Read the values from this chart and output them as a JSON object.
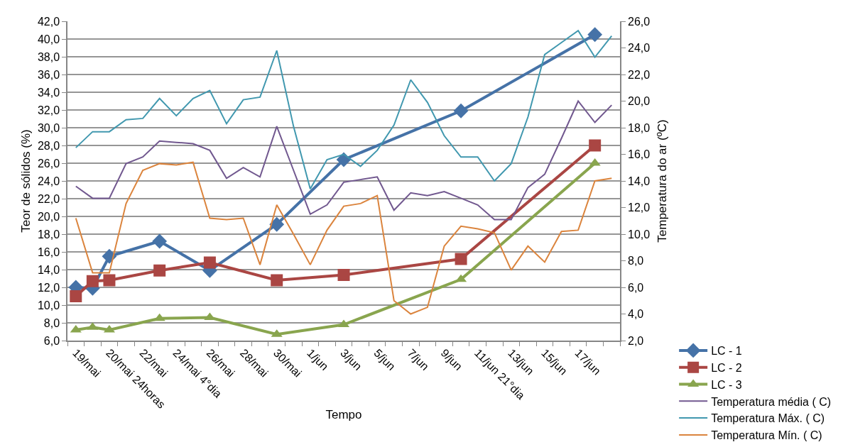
{
  "chart_data": {
    "type": "line",
    "categories": [
      "19/mai",
      null,
      "20/mai 24horas",
      null,
      "22/mai",
      null,
      "24/mai 4°dia",
      null,
      "26/mai",
      null,
      "28/mai",
      null,
      "30/mai",
      null,
      "1/jun",
      null,
      "3/jun",
      null,
      "5/jun",
      null,
      "7/jun",
      null,
      "9/jun",
      null,
      "11/jun 21°dia",
      null,
      "13/jun",
      null,
      "15/jun",
      null,
      "17/jun",
      null,
      null
    ],
    "xlabel": "Tempo",
    "ylabel": "Teor de sólidos (%)",
    "y2label": "Temperatura do ar (ºC)",
    "ylim": [
      6,
      42
    ],
    "yticks": [
      {
        "value": 6,
        "label": "6,0"
      },
      {
        "value": 8,
        "label": "8,0"
      },
      {
        "value": 10,
        "label": "10,0"
      },
      {
        "value": 12,
        "label": "12,0"
      },
      {
        "value": 14,
        "label": "14,0"
      },
      {
        "value": 16,
        "label": "16,0"
      },
      {
        "value": 18,
        "label": "18,0"
      },
      {
        "value": 20,
        "label": "20,0"
      },
      {
        "value": 22,
        "label": "22,0"
      },
      {
        "value": 24,
        "label": "24,0"
      },
      {
        "value": 26,
        "label": "26,0"
      },
      {
        "value": 28,
        "label": "28,0"
      },
      {
        "value": 30,
        "label": "30,0"
      },
      {
        "value": 32,
        "label": "32,0"
      },
      {
        "value": 34,
        "label": "34,0"
      },
      {
        "value": 36,
        "label": "36,0"
      },
      {
        "value": 38,
        "label": "38,0"
      },
      {
        "value": 40,
        "label": "40,0"
      },
      {
        "value": 42,
        "label": "42,0"
      }
    ],
    "y2lim": [
      2,
      26
    ],
    "y2ticks": [
      {
        "value": 2,
        "label": "2,0"
      },
      {
        "value": 4,
        "label": "4,0"
      },
      {
        "value": 6,
        "label": "6,0"
      },
      {
        "value": 8,
        "label": "8,0"
      },
      {
        "value": 10,
        "label": "10,0"
      },
      {
        "value": 12,
        "label": "12,0"
      },
      {
        "value": 14,
        "label": "14,0"
      },
      {
        "value": 16,
        "label": "16,0"
      },
      {
        "value": 18,
        "label": "18,0"
      },
      {
        "value": 20,
        "label": "20,0"
      },
      {
        "value": 22,
        "label": "22,0"
      },
      {
        "value": 24,
        "label": "24,0"
      },
      {
        "value": 26,
        "label": "26,0"
      }
    ],
    "grid": "y",
    "legend": "bottom right",
    "line_style": "solid",
    "series": [
      {
        "name": "LC - 1",
        "color": "#4572a7",
        "marker": "diamond",
        "values": [
          12.0,
          11.9,
          15.5,
          null,
          null,
          17.2,
          null,
          null,
          13.9,
          null,
          null,
          null,
          19.1,
          null,
          null,
          null,
          26.4,
          null,
          null,
          null,
          null,
          null,
          null,
          31.9,
          null,
          null,
          null,
          null,
          null,
          null,
          null,
          40.5,
          null
        ]
      },
      {
        "name": "LC - 2",
        "color": "#aa4643",
        "marker": "square",
        "values": [
          11.0,
          12.7,
          12.8,
          null,
          null,
          13.9,
          null,
          null,
          14.8,
          null,
          null,
          null,
          12.8,
          null,
          null,
          null,
          13.4,
          null,
          null,
          null,
          null,
          null,
          null,
          15.2,
          null,
          null,
          null,
          null,
          null,
          null,
          null,
          28.0,
          null
        ]
      },
      {
        "name": "LC - 3",
        "color": "#89a54e",
        "marker": "triangle",
        "values": [
          7.2,
          7.5,
          7.2,
          null,
          null,
          8.5,
          null,
          null,
          8.6,
          null,
          null,
          null,
          6.7,
          null,
          null,
          null,
          7.8,
          null,
          null,
          null,
          null,
          null,
          null,
          12.9,
          null,
          null,
          null,
          null,
          null,
          null,
          null,
          26.0,
          null
        ]
      },
      {
        "name": "Temperatura média ( C)",
        "color": "#71588f",
        "marker": "none",
        "axis": "y2",
        "values": [
          13.6,
          12.7,
          12.7,
          15.3,
          15.8,
          17.0,
          16.9,
          16.8,
          16.3,
          14.2,
          15.0,
          14.3,
          18.1,
          14.8,
          11.5,
          12.2,
          13.9,
          14.1,
          14.3,
          11.8,
          13.1,
          12.9,
          13.2,
          12.7,
          12.2,
          11.1,
          11.1,
          13.5,
          14.5,
          17.2,
          20.0,
          18.4,
          19.7
        ]
      },
      {
        "name": "Temperatura Máx. ( C)",
        "color": "#4198af",
        "marker": "none",
        "axis": "y2",
        "values": [
          16.5,
          17.7,
          17.7,
          18.6,
          18.7,
          20.2,
          18.9,
          20.2,
          20.8,
          18.3,
          20.1,
          20.3,
          23.8,
          18.1,
          13.4,
          15.6,
          16.0,
          15.1,
          16.3,
          18.2,
          21.6,
          19.9,
          17.4,
          15.8,
          15.8,
          14.0,
          15.3,
          18.8,
          23.5,
          24.4,
          25.3,
          23.3,
          24.9
        ]
      },
      {
        "name": "Temperatura Mín. ( C)",
        "color": "#db843d",
        "marker": "none",
        "axis": "y2",
        "values": [
          11.2,
          7.1,
          7.1,
          12.3,
          14.8,
          15.3,
          15.2,
          15.4,
          11.2,
          11.1,
          11.2,
          7.7,
          12.2,
          10.0,
          7.7,
          10.3,
          12.1,
          12.3,
          12.9,
          5.0,
          4.0,
          4.5,
          9.1,
          10.6,
          10.4,
          10.1,
          7.3,
          9.1,
          7.9,
          10.2,
          10.3,
          14.0,
          14.2
        ]
      }
    ]
  }
}
